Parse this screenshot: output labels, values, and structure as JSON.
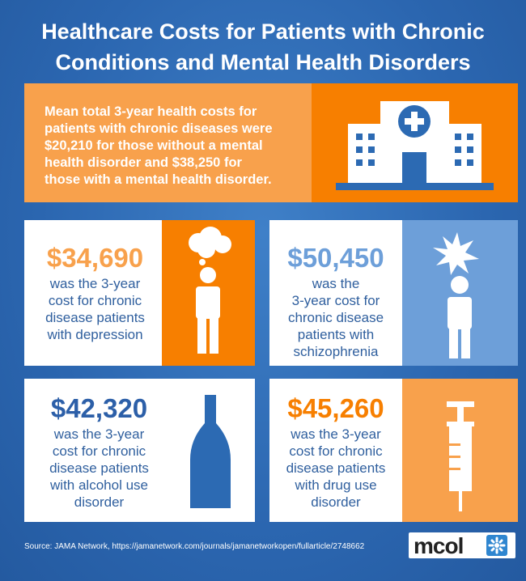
{
  "header": {
    "title_lines": [
      "Healthcare Costs for Patients with Chronic",
      "Conditions and Mental Health Disorders"
    ]
  },
  "intro": {
    "lines": [
      [
        "Mean total 3-year health costs for"
      ],
      [
        "patients with chronic diseases were"
      ],
      [
        "$20,210",
        " for those without a mental"
      ],
      [
        "health disorder and ",
        "$38,250",
        " for"
      ],
      [
        "those with a mental health disorder."
      ]
    ]
  },
  "cards": [
    {
      "amount": "$34,690",
      "lines": [
        "was the 3-year",
        "cost for chronic",
        "disease patients",
        "with depression"
      ]
    },
    {
      "amount": "$50,450",
      "lines": [
        "was the",
        "3-year cost for",
        "chronic disease",
        "patients with",
        "schizophrenia"
      ]
    },
    {
      "amount": "$42,320",
      "lines": [
        "was the 3-year",
        "cost for chronic",
        "disease patients",
        "with alcohol use",
        "disorder"
      ]
    },
    {
      "amount": "$45,260",
      "lines": [
        "was the 3-year",
        "cost for chronic",
        "disease patients",
        "with drug use",
        "disorder"
      ]
    }
  ],
  "footer": {
    "source": "Source: JAMA Network, https://jamanetwork.com/journals/jamanetworkopen/fullarticle/2748662",
    "logo": "mcol"
  }
}
